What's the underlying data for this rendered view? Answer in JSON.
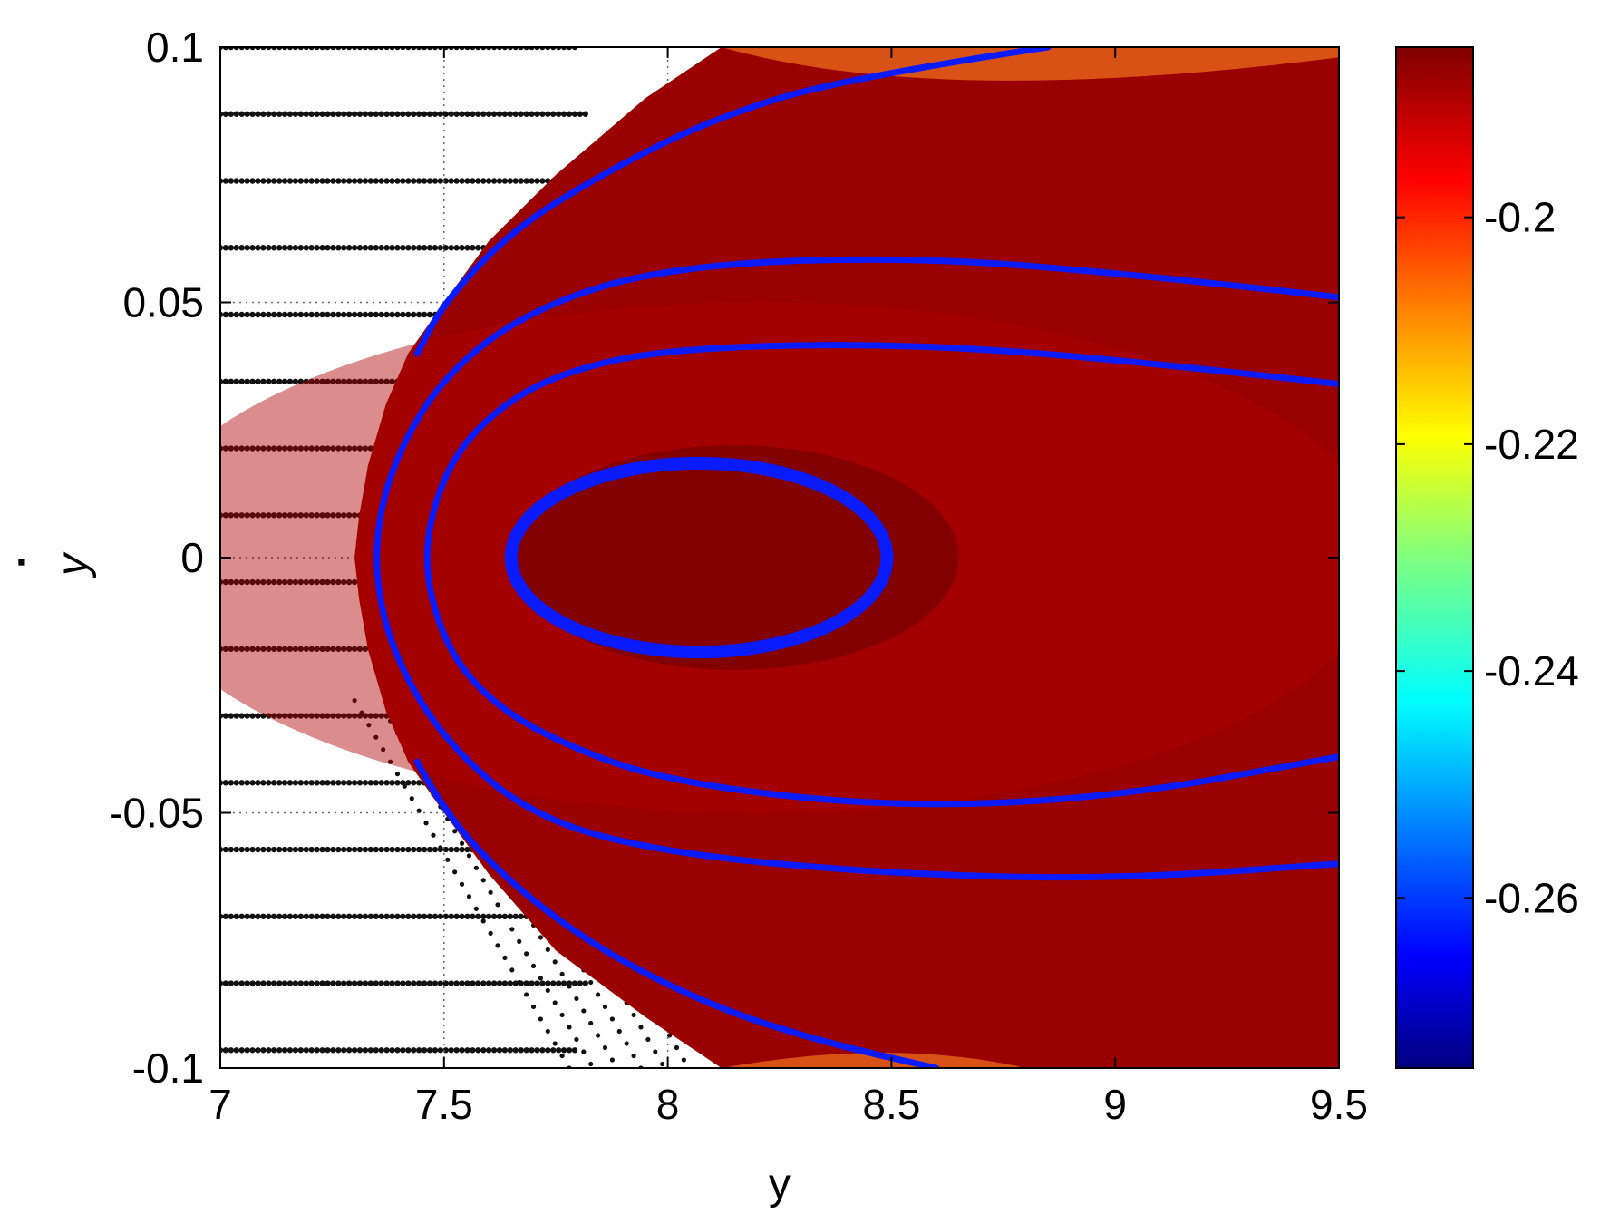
{
  "chart_data": {
    "type": "heatmap",
    "title": "",
    "xlabel": "y",
    "ylabel": "y",
    "ylabel_accent": "·",
    "xlim": [
      7,
      9.5
    ],
    "ylim": [
      -0.1,
      0.1
    ],
    "xticks": [
      7,
      7.5,
      8,
      8.5,
      9,
      9.5
    ],
    "xtick_labels": [
      "7",
      "7.5",
      "8",
      "8.5",
      "9",
      "9.5"
    ],
    "yticks": [
      0.1,
      0.05,
      0,
      -0.05,
      -0.1
    ],
    "ytick_labels": [
      "0.1",
      "0.05",
      "0",
      "-0.05",
      "-0.1"
    ],
    "grid": true,
    "colorbar": {
      "range": [
        -0.275,
        -0.185
      ],
      "ticks": [
        -0.2,
        -0.22,
        -0.24,
        -0.26
      ],
      "tick_labels": [
        "-0.2",
        "-0.22",
        "-0.24",
        "-0.26"
      ],
      "colormap": "jet"
    },
    "field_value_typical": -0.19,
    "region_left_boundary": [
      [
        8.12,
        0.1
      ],
      [
        7.95,
        0.09
      ],
      [
        7.75,
        0.075
      ],
      [
        7.6,
        0.062
      ],
      [
        7.5,
        0.05
      ],
      [
        7.42,
        0.04
      ],
      [
        7.37,
        0.03
      ],
      [
        7.33,
        0.018
      ],
      [
        7.31,
        0.008
      ],
      [
        7.3,
        0.0
      ],
      [
        7.31,
        -0.008
      ],
      [
        7.33,
        -0.018
      ],
      [
        7.37,
        -0.03
      ],
      [
        7.42,
        -0.04
      ],
      [
        7.5,
        -0.05
      ],
      [
        7.6,
        -0.062
      ],
      [
        7.75,
        -0.077
      ],
      [
        7.95,
        -0.09
      ],
      [
        8.12,
        -0.1
      ]
    ],
    "orbits": [
      {
        "type": "ellipse",
        "center": [
          8.07,
          0.0
        ],
        "semi_axis_x": 0.42,
        "semi_axis_y": 0.0185,
        "value": -0.26
      },
      {
        "type": "curve",
        "value": -0.26,
        "points": [
          [
            9.5,
            0.034
          ],
          [
            9.0,
            0.039
          ],
          [
            8.5,
            0.042
          ],
          [
            8.0,
            0.041
          ],
          [
            7.75,
            0.036
          ],
          [
            7.6,
            0.028
          ],
          [
            7.5,
            0.017
          ],
          [
            7.45,
            0.0
          ],
          [
            7.5,
            -0.017
          ],
          [
            7.6,
            -0.028
          ],
          [
            7.75,
            -0.036
          ],
          [
            8.0,
            -0.044
          ],
          [
            8.5,
            -0.049
          ],
          [
            9.0,
            -0.047
          ],
          [
            9.5,
            -0.039
          ]
        ]
      },
      {
        "type": "curve",
        "value": -0.26,
        "points": [
          [
            9.5,
            0.051
          ],
          [
            9.0,
            0.056
          ],
          [
            8.5,
            0.059
          ],
          [
            8.0,
            0.057
          ],
          [
            7.7,
            0.049
          ],
          [
            7.5,
            0.036
          ],
          [
            7.38,
            0.018
          ],
          [
            7.34,
            0.0
          ],
          [
            7.38,
            -0.018
          ],
          [
            7.5,
            -0.036
          ],
          [
            7.7,
            -0.051
          ],
          [
            8.0,
            -0.058
          ],
          [
            8.5,
            -0.062
          ],
          [
            9.0,
            -0.063
          ],
          [
            9.5,
            -0.06
          ]
        ]
      },
      {
        "type": "curve",
        "value": -0.26,
        "points": [
          [
            8.85,
            0.1
          ],
          [
            8.4,
            0.094
          ],
          [
            8.1,
            0.086
          ],
          [
            7.85,
            0.075
          ],
          [
            7.65,
            0.064
          ],
          [
            7.5,
            0.05
          ],
          [
            7.44,
            0.04
          ]
        ]
      },
      {
        "type": "curve",
        "value": -0.26,
        "points": [
          [
            7.44,
            -0.04
          ],
          [
            7.5,
            -0.05
          ],
          [
            7.65,
            -0.064
          ],
          [
            7.85,
            -0.077
          ],
          [
            8.1,
            -0.088
          ],
          [
            8.35,
            -0.095
          ],
          [
            8.6,
            -0.1
          ]
        ]
      }
    ]
  }
}
